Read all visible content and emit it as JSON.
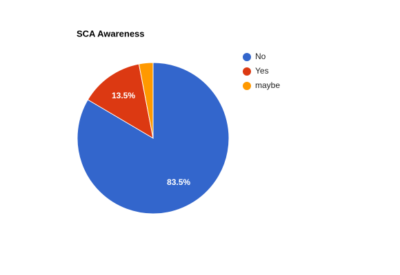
{
  "chart_data": {
    "type": "pie",
    "title": "SCA Awareness",
    "categories": [
      "No",
      "Yes",
      "maybe"
    ],
    "values": [
      83.5,
      13.5,
      3
    ],
    "value_labels": [
      "83.5%",
      "13.5%",
      null
    ],
    "colors": [
      "#3366cc",
      "#dc3912",
      "#ff9900"
    ],
    "legend": "right"
  }
}
